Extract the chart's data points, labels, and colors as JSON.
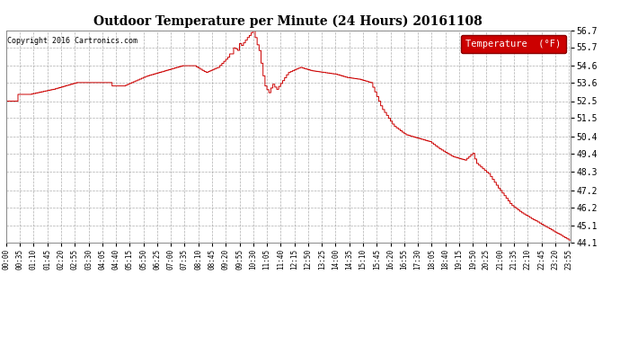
{
  "title": "Outdoor Temperature per Minute (24 Hours) 20161108",
  "copyright": "Copyright 2016 Cartronics.com",
  "legend_label": "Temperature  (°F)",
  "line_color": "#cc0000",
  "legend_bg": "#cc0000",
  "legend_text_color": "#ffffff",
  "bg_color": "#ffffff",
  "plot_bg_color": "#ffffff",
  "grid_color": "#999999",
  "title_color": "#000000",
  "copyright_color": "#000000",
  "ylim": [
    44.1,
    56.7
  ],
  "yticks": [
    44.1,
    45.1,
    46.2,
    47.2,
    48.3,
    49.4,
    50.4,
    51.5,
    52.5,
    53.6,
    54.6,
    55.7,
    56.7
  ],
  "xtick_labels": [
    "00:00",
    "00:35",
    "01:10",
    "01:45",
    "02:20",
    "02:55",
    "03:30",
    "04:05",
    "04:40",
    "05:15",
    "05:50",
    "06:25",
    "07:00",
    "07:35",
    "08:10",
    "08:45",
    "09:20",
    "09:55",
    "10:30",
    "11:05",
    "11:40",
    "12:15",
    "12:50",
    "13:25",
    "14:00",
    "14:35",
    "15:10",
    "15:45",
    "16:20",
    "16:55",
    "17:30",
    "18:05",
    "18:40",
    "19:15",
    "19:50",
    "20:25",
    "21:00",
    "21:35",
    "22:10",
    "22:45",
    "23:20",
    "23:55"
  ],
  "xtick_minutes": [
    0,
    35,
    70,
    105,
    140,
    175,
    210,
    245,
    280,
    315,
    350,
    385,
    420,
    455,
    490,
    525,
    560,
    595,
    630,
    665,
    700,
    735,
    770,
    805,
    840,
    875,
    910,
    945,
    980,
    1015,
    1050,
    1085,
    1120,
    1155,
    1190,
    1225,
    1260,
    1295,
    1330,
    1365,
    1400,
    1435
  ],
  "num_points": 1440
}
